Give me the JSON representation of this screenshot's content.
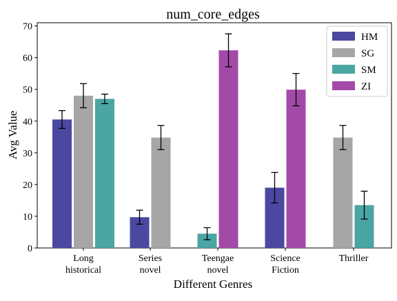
{
  "chart_data": {
    "type": "bar",
    "title": "num_core_edges",
    "xlabel": "Different Genres",
    "ylabel": "Avg Value",
    "ylim": [
      0,
      71
    ],
    "yticks": [
      0,
      10,
      20,
      30,
      40,
      50,
      60,
      70
    ],
    "categories": [
      [
        "Long",
        "historical"
      ],
      [
        "Series",
        "novel"
      ],
      [
        "Teengae",
        "novel"
      ],
      [
        "Science",
        "Fiction"
      ],
      [
        "Thriller"
      ]
    ],
    "legend_position": "top-right",
    "series": [
      {
        "name": "HM",
        "color": "#4a48a0",
        "values": [
          40.5,
          9.7,
          null,
          19.0,
          null
        ],
        "errors": [
          2.8,
          2.2,
          null,
          4.8,
          null
        ]
      },
      {
        "name": "SG",
        "color": "#a6a6a6",
        "values": [
          48.0,
          34.8,
          null,
          null,
          34.8
        ],
        "errors": [
          3.8,
          3.8,
          null,
          null,
          3.8
        ]
      },
      {
        "name": "SM",
        "color": "#4aa5a3",
        "values": [
          47.0,
          null,
          4.5,
          null,
          13.5
        ],
        "errors": [
          1.5,
          null,
          1.9,
          null,
          4.4
        ]
      },
      {
        "name": "ZI",
        "color": "#a34aa8",
        "values": [
          null,
          null,
          62.3,
          49.9,
          null
        ],
        "errors": [
          null,
          null,
          5.2,
          5.1,
          null
        ]
      }
    ]
  }
}
